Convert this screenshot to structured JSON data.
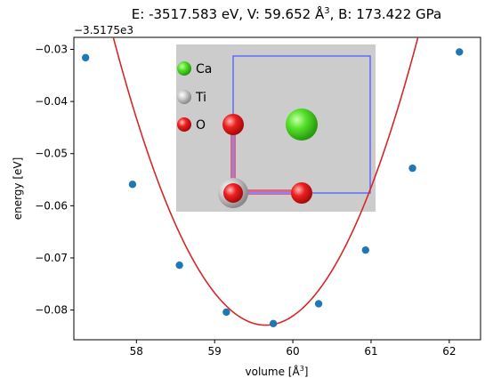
{
  "chart_data": {
    "type": "scatter",
    "title_prefix": "E: -3517.583 eV, V: 59.652 Å",
    "title_sup": "3",
    "title_suffix": ", B: 173.422 GPa",
    "xlabel_prefix": "volume [Å",
    "xlabel_sup": "3",
    "xlabel_suffix": "]",
    "ylabel": "energy [eV]",
    "offset_label": "−3.5175e3",
    "xlim": [
      57.2,
      62.4
    ],
    "ylim": [
      -0.0857,
      -0.0277
    ],
    "xticks": [
      {
        "value": 58,
        "label": "58"
      },
      {
        "value": 59,
        "label": "59"
      },
      {
        "value": 60,
        "label": "60"
      },
      {
        "value": 61,
        "label": "61"
      },
      {
        "value": 62,
        "label": "62"
      }
    ],
    "yticks": [
      {
        "value": -0.03,
        "label": "−0.03"
      },
      {
        "value": -0.04,
        "label": "−0.04"
      },
      {
        "value": -0.05,
        "label": "−0.05"
      },
      {
        "value": -0.06,
        "label": "−0.06"
      },
      {
        "value": -0.07,
        "label": "−0.07"
      },
      {
        "value": -0.08,
        "label": "−0.08"
      }
    ],
    "points": [
      {
        "x": 57.35,
        "y": -0.0316
      },
      {
        "x": 57.95,
        "y": -0.0559
      },
      {
        "x": 58.55,
        "y": -0.0714
      },
      {
        "x": 59.15,
        "y": -0.0804
      },
      {
        "x": 59.75,
        "y": -0.0826
      },
      {
        "x": 60.33,
        "y": -0.0788
      },
      {
        "x": 60.93,
        "y": -0.0685
      },
      {
        "x": 61.53,
        "y": -0.0528
      },
      {
        "x": 62.13,
        "y": -0.0305
      }
    ],
    "fit": {
      "type": "quadratic",
      "vertex_x": 59.652,
      "vertex_y": -0.0829,
      "curvature": 0.01455
    },
    "colors": {
      "points": "#1f77b4",
      "fit": "#d62728"
    },
    "inset": {
      "background": "#cccccc",
      "legend": [
        {
          "label": "Ca",
          "color": "#44dd22"
        },
        {
          "label": "Ti",
          "color": "#bfbfbf"
        },
        {
          "label": "O",
          "color": "#ee2222"
        }
      ]
    }
  }
}
